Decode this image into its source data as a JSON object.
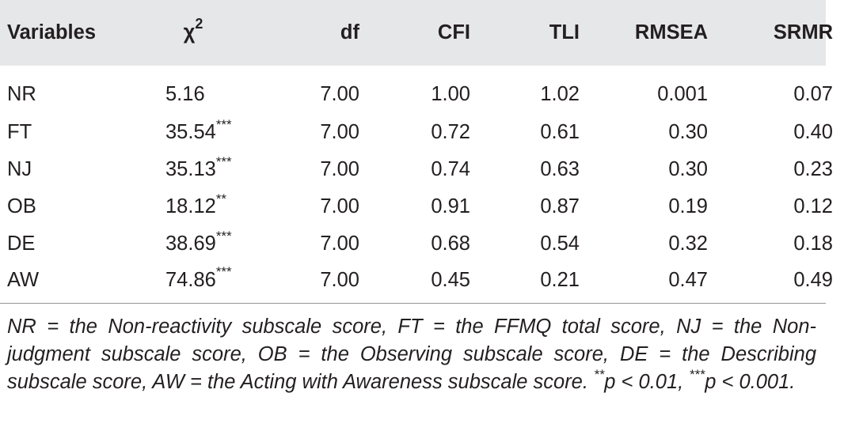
{
  "table": {
    "headers": [
      "Variables",
      "χ",
      "df",
      "CFI",
      "TLI",
      "RMSEA",
      "SRMR"
    ],
    "chi_sup": "2",
    "rows": [
      {
        "var": "NR",
        "chi": "5.16",
        "stars": "",
        "df": "7.00",
        "cfi": "1.00",
        "tli": "1.02",
        "rmsea": "0.001",
        "srmr": "0.07"
      },
      {
        "var": "FT",
        "chi": "35.54",
        "stars": "***",
        "df": "7.00",
        "cfi": "0.72",
        "tli": "0.61",
        "rmsea": "0.30",
        "srmr": "0.40"
      },
      {
        "var": "NJ",
        "chi": "35.13",
        "stars": "***",
        "df": "7.00",
        "cfi": "0.74",
        "tli": "0.63",
        "rmsea": "0.30",
        "srmr": "0.23"
      },
      {
        "var": "OB",
        "chi": "18.12",
        "stars": "**",
        "df": "7.00",
        "cfi": "0.91",
        "tli": "0.87",
        "rmsea": "0.19",
        "srmr": "0.12"
      },
      {
        "var": "DE",
        "chi": "38.69",
        "stars": "***",
        "df": "7.00",
        "cfi": "0.68",
        "tli": "0.54",
        "rmsea": "0.32",
        "srmr": "0.18"
      },
      {
        "var": "AW",
        "chi": "74.86",
        "stars": "***",
        "df": "7.00",
        "cfi": "0.45",
        "tli": "0.21",
        "rmsea": "0.47",
        "srmr": "0.49"
      }
    ]
  },
  "note": {
    "text": "NR = the Non-reactivity subscale score, FT = the FFMQ total score, NJ = the Non-judgment subscale score, OB = the Observing subscale score, DE = the Describing subscale score, AW = the Acting with Awareness subscale score.",
    "sig1_stars": "**",
    "sig1_text": "p < 0.01,",
    "sig2_stars": "***",
    "sig2_text": "p < 0.001."
  },
  "colors": {
    "header_background": "#e6e7e8",
    "text": "#231f20",
    "rule": "#939598"
  }
}
